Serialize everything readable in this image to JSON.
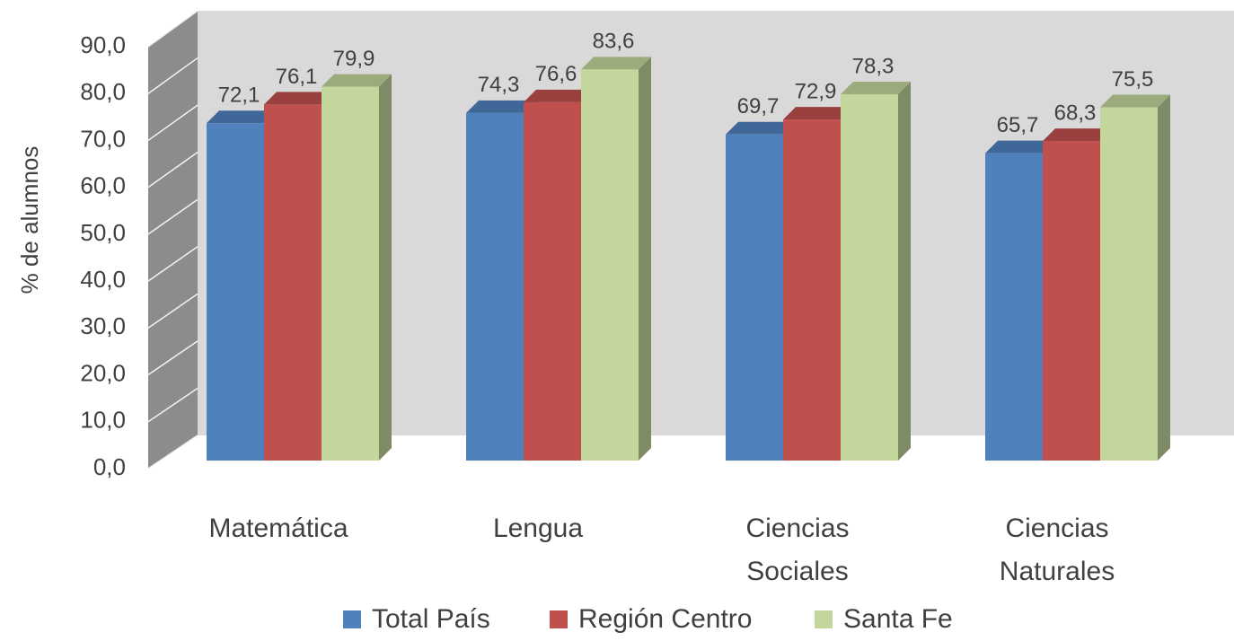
{
  "chart_data": {
    "type": "bar3d",
    "y_label": "% de alumnos",
    "categories": [
      "Matemática",
      "Lengua",
      "Ciencias Sociales",
      "Ciencias Naturales"
    ],
    "series": [
      {
        "name": "Total País",
        "color": "#4f81bd",
        "values": [
          72.1,
          74.3,
          69.7,
          65.7
        ],
        "value_labels": [
          "72,1",
          "74,3",
          "69,7",
          "65,7"
        ]
      },
      {
        "name": "Región Centro",
        "color": "#c0504d",
        "values": [
          76.1,
          76.6,
          72.9,
          68.3
        ],
        "value_labels": [
          "76,1",
          "76,6",
          "72,9",
          "68,3"
        ]
      },
      {
        "name": "Santa Fe",
        "color": "#c3d69b",
        "values": [
          79.9,
          83.6,
          78.3,
          75.5
        ],
        "value_labels": [
          "79,9",
          "83,6",
          "78,3",
          "75,5"
        ]
      }
    ],
    "ylim": [
      0,
      90
    ],
    "yticks": [
      {
        "value": 0,
        "label": "0,0"
      },
      {
        "value": 10,
        "label": "10,0"
      },
      {
        "value": 20,
        "label": "20,0"
      },
      {
        "value": 30,
        "label": "30,0"
      },
      {
        "value": 40,
        "label": "40,0"
      },
      {
        "value": 50,
        "label": "50,0"
      },
      {
        "value": 60,
        "label": "60,0"
      },
      {
        "value": 70,
        "label": "70,0"
      },
      {
        "value": 80,
        "label": "80,0"
      },
      {
        "value": 90,
        "label": "90,0"
      }
    ],
    "grid": true,
    "legend": "bottom"
  }
}
